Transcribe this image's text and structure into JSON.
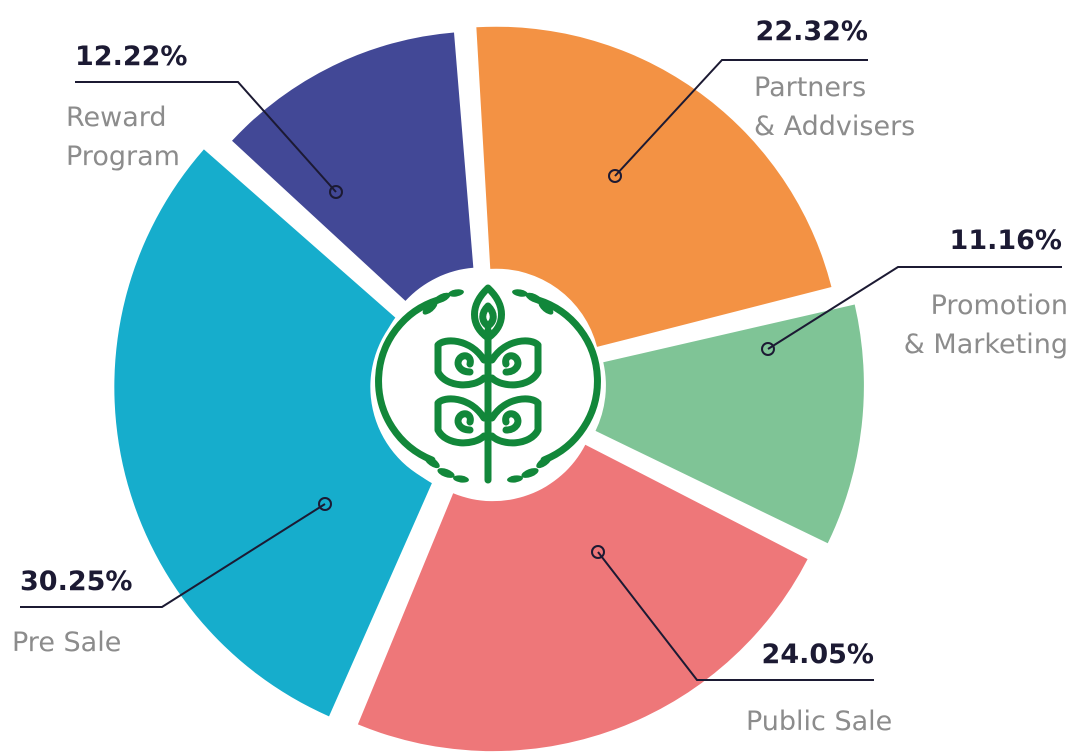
{
  "chart_data": {
    "type": "pie",
    "title": "",
    "slices": [
      {
        "label_lines": [
          "Partners",
          "& Addvisers"
        ],
        "percent_text": "22.32%",
        "value": 22.32,
        "color": "#f39244"
      },
      {
        "label_lines": [
          "Promotion",
          "& Marketing"
        ],
        "percent_text": "11.16%",
        "value": 11.16,
        "color": "#7fc496"
      },
      {
        "label_lines": [
          "Public Sale"
        ],
        "percent_text": "24.05%",
        "value": 24.05,
        "color": "#ee7779"
      },
      {
        "label_lines": [
          "Pre Sale"
        ],
        "percent_text": "30.25%",
        "value": 30.25,
        "color": "#16adcc"
      },
      {
        "label_lines": [
          "Reward",
          "Program"
        ],
        "percent_text": "12.22%",
        "value": 12.22,
        "color": "#424896"
      }
    ]
  },
  "center_logo": {
    "icon": "leaf-sprout-logo-icon",
    "color": "#12873a"
  }
}
